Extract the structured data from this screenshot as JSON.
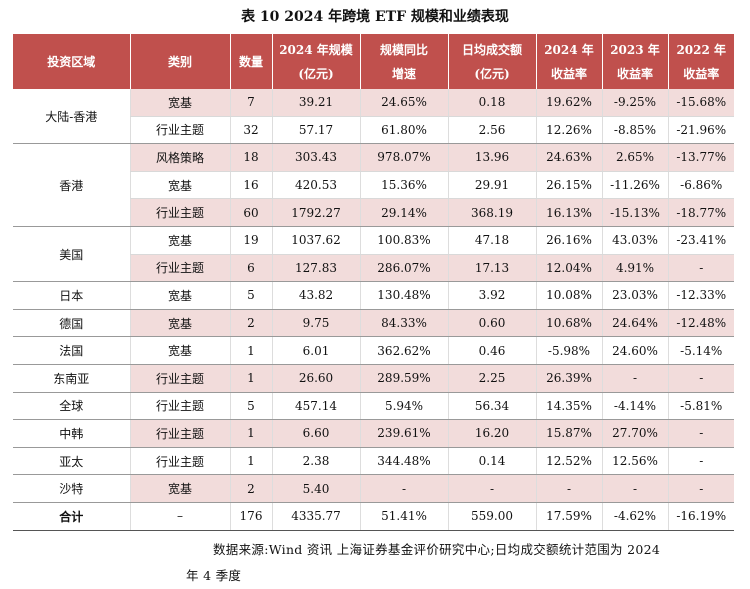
{
  "title": "表 10  2024 年跨境 ETF 规模和业绩表现",
  "headers": [
    [
      "投资区域"
    ],
    [
      "类别"
    ],
    [
      "数量"
    ],
    [
      "2024 年规模",
      "(亿元)"
    ],
    [
      "规模同比",
      "增速"
    ],
    [
      "日均成交额",
      "(亿元)"
    ],
    [
      "2024 年",
      "收益率"
    ],
    [
      "2023 年",
      "收益率"
    ],
    [
      "2022 年",
      "收益率"
    ]
  ],
  "groups": [
    {
      "region": "大陆-香港",
      "rows": [
        {
          "cells": [
            "宽基",
            "7",
            "39.21",
            "24.65%",
            "0.18",
            "19.62%",
            "-9.25%",
            "-15.68%"
          ],
          "shade": true
        },
        {
          "cells": [
            "行业主题",
            "32",
            "57.17",
            "61.80%",
            "2.56",
            "12.26%",
            "-8.85%",
            "-21.96%"
          ],
          "shade": false
        }
      ]
    },
    {
      "region": "香港",
      "rows": [
        {
          "cells": [
            "风格策略",
            "18",
            "303.43",
            "978.07%",
            "13.96",
            "24.63%",
            "2.65%",
            "-13.77%"
          ],
          "shade": true
        },
        {
          "cells": [
            "宽基",
            "16",
            "420.53",
            "15.36%",
            "29.91",
            "26.15%",
            "-11.26%",
            "-6.86%"
          ],
          "shade": false
        },
        {
          "cells": [
            "行业主题",
            "60",
            "1792.27",
            "29.14%",
            "368.19",
            "16.13%",
            "-15.13%",
            "-18.77%"
          ],
          "shade": true
        }
      ]
    },
    {
      "region": "美国",
      "rows": [
        {
          "cells": [
            "宽基",
            "19",
            "1037.62",
            "100.83%",
            "47.18",
            "26.16%",
            "43.03%",
            "-23.41%"
          ],
          "shade": false
        },
        {
          "cells": [
            "行业主题",
            "6",
            "127.83",
            "286.07%",
            "17.13",
            "12.04%",
            "4.91%",
            "-"
          ],
          "shade": true
        }
      ]
    },
    {
      "region": "日本",
      "rows": [
        {
          "cells": [
            "宽基",
            "5",
            "43.82",
            "130.48%",
            "3.92",
            "10.08%",
            "23.03%",
            "-12.33%"
          ],
          "shade": false
        }
      ]
    },
    {
      "region": "德国",
      "rows": [
        {
          "cells": [
            "宽基",
            "2",
            "9.75",
            "84.33%",
            "0.60",
            "10.68%",
            "24.64%",
            "-12.48%"
          ],
          "shade": true
        }
      ]
    },
    {
      "region": "法国",
      "rows": [
        {
          "cells": [
            "宽基",
            "1",
            "6.01",
            "362.62%",
            "0.46",
            "-5.98%",
            "24.60%",
            "-5.14%"
          ],
          "shade": false
        }
      ]
    },
    {
      "region": "东南亚",
      "rows": [
        {
          "cells": [
            "行业主题",
            "1",
            "26.60",
            "289.59%",
            "2.25",
            "26.39%",
            "-",
            "-"
          ],
          "shade": true
        }
      ]
    },
    {
      "region": "全球",
      "rows": [
        {
          "cells": [
            "行业主题",
            "5",
            "457.14",
            "5.94%",
            "56.34",
            "14.35%",
            "-4.14%",
            "-5.81%"
          ],
          "shade": false
        }
      ]
    },
    {
      "region": "中韩",
      "rows": [
        {
          "cells": [
            "行业主题",
            "1",
            "6.60",
            "239.61%",
            "16.20",
            "15.87%",
            "27.70%",
            "-"
          ],
          "shade": true
        }
      ]
    },
    {
      "region": "亚太",
      "rows": [
        {
          "cells": [
            "行业主题",
            "1",
            "2.38",
            "344.48%",
            "0.14",
            "12.52%",
            "12.56%",
            "-"
          ],
          "shade": false
        }
      ]
    },
    {
      "region": "沙特",
      "rows": [
        {
          "cells": [
            "宽基",
            "2",
            "5.40",
            "-",
            "-",
            "-",
            "-",
            "-"
          ],
          "shade": true
        }
      ]
    }
  ],
  "total": {
    "region": "合计",
    "cells": [
      "–",
      "176",
      "4335.77",
      "51.41%",
      "559.00",
      "17.59%",
      "-4.62%",
      "-16.19%"
    ]
  },
  "source_line1": "数据来源:Wind 资讯 上海证券基金评价研究中心;日均成交额统计范围为 2024",
  "source_line2": "年 4 季度"
}
